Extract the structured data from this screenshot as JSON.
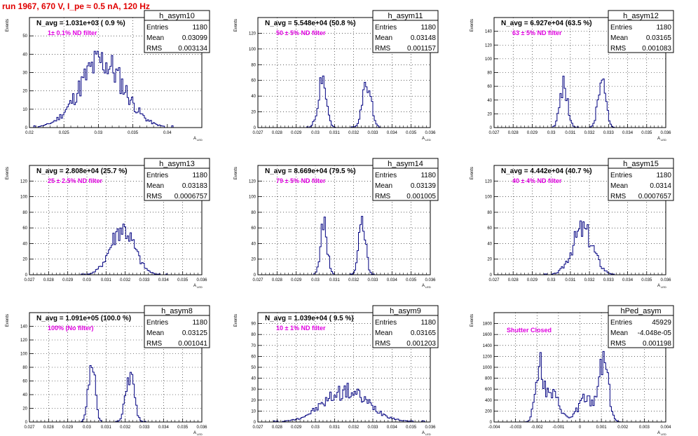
{
  "run_title": "run 1967,   670 V, I_pe ≈ 0.5 nA, 120 Hz",
  "colors": {
    "title": "#e00000",
    "line": "#000080",
    "frame": "#000000",
    "annotation": "#e000e0",
    "grid": "#000000"
  },
  "stats_labels": {
    "entries": "Entries",
    "mean": "Mean",
    "rms": "RMS"
  },
  "axis_labels": {
    "y": "Events",
    "x": "A",
    "x_sub": "LED"
  },
  "chart_data": [
    {
      "type": "histogram",
      "name": "h_asym10",
      "entries": "1180",
      "mean": "0.03099",
      "rms": "0.003134",
      "navg": "N_avg = 1.031e+03 ( 0.9 %)",
      "note": "1± 0.1% ND filter",
      "xlim": [
        0.02,
        0.045
      ],
      "ylim": [
        0,
        60
      ],
      "xticks": [
        "0.02",
        "0.025",
        "0.03",
        "0.035",
        "0.04"
      ],
      "xtick_values": [
        0.02,
        0.025,
        0.03,
        0.035,
        0.04
      ],
      "yticks": [
        0,
        10,
        20,
        30,
        40,
        50
      ],
      "peaks": [
        {
          "center": 0.0305,
          "sigma": 0.0032,
          "height": 36,
          "skew": 0
        }
      ],
      "seed": 11,
      "grid": true
    },
    {
      "type": "histogram",
      "name": "h_asym11",
      "entries": "1180",
      "mean": "0.03148",
      "rms": "0.001157",
      "navg": "N_avg = 5.548e+04 (50.8 %)",
      "note": "50 ± 5% ND filter",
      "xlim": [
        0.027,
        0.036
      ],
      "ylim": [
        0,
        140
      ],
      "xticks": [
        "0.027",
        "0.028",
        "0.029",
        "0.03",
        "0.031",
        "0.032",
        "0.033",
        "0.034",
        "0.035",
        "0.036"
      ],
      "xtick_values": [
        0.027,
        0.028,
        0.029,
        0.03,
        0.031,
        0.032,
        0.033,
        0.034,
        0.035,
        0.036
      ],
      "yticks": [
        0,
        20,
        40,
        60,
        80,
        100,
        120
      ],
      "peaks": [
        {
          "center": 0.03035,
          "sigma": 0.00022,
          "height": 56
        },
        {
          "center": 0.0327,
          "sigma": 0.00022,
          "height": 58
        }
      ],
      "seed": 23,
      "grid": true
    },
    {
      "type": "histogram",
      "name": "h_asym12",
      "entries": "1180",
      "mean": "0.03165",
      "rms": "0.001083",
      "navg": "N_avg = 6.927e+04 (63.5 %)",
      "note": "63 ± 5% ND filter",
      "xlim": [
        0.027,
        0.036
      ],
      "ylim": [
        0,
        160
      ],
      "xticks": [
        "0.027",
        "0.028",
        "0.029",
        "0.03",
        "0.031",
        "0.032",
        "0.033",
        "0.034",
        "0.035",
        "0.036"
      ],
      "xtick_values": [
        0.027,
        0.028,
        0.029,
        0.03,
        0.031,
        0.032,
        0.033,
        0.034,
        0.035,
        0.036
      ],
      "yticks": [
        0,
        20,
        40,
        60,
        80,
        100,
        120,
        140
      ],
      "peaks": [
        {
          "center": 0.03065,
          "sigma": 0.0002,
          "height": 62
        },
        {
          "center": 0.03265,
          "sigma": 0.0002,
          "height": 68
        }
      ],
      "seed": 37,
      "grid": true
    },
    {
      "type": "histogram",
      "name": "h_asym13",
      "entries": "1180",
      "mean": "0.03183",
      "rms": "0.0006757",
      "navg": "N_avg = 2.808e+04 (25.7 %)",
      "note": "25 ± 2.5% ND filter",
      "xlim": [
        0.027,
        0.036
      ],
      "ylim": [
        0,
        140
      ],
      "xticks": [
        "0.027",
        "0.028",
        "0.029",
        "0.03",
        "0.031",
        "0.032",
        "0.033",
        "0.034",
        "0.035",
        "0.036"
      ],
      "xtick_values": [
        0.027,
        0.028,
        0.029,
        0.03,
        0.031,
        0.032,
        0.033,
        0.034,
        0.035,
        0.036
      ],
      "yticks": [
        0,
        20,
        40,
        60,
        80,
        100,
        120
      ],
      "peaks": [
        {
          "center": 0.03185,
          "sigma": 0.00062,
          "height": 58
        }
      ],
      "seed": 41,
      "grid": true
    },
    {
      "type": "histogram",
      "name": "h_asym14",
      "entries": "1180",
      "mean": "0.03139",
      "rms": "0.001005",
      "navg": "N_avg = 8.669e+04 (79.5 %)",
      "note": "79 ± 5% ND filter",
      "xlim": [
        0.027,
        0.036
      ],
      "ylim": [
        0,
        140
      ],
      "xticks": [
        "0.027",
        "0.028",
        "0.029",
        "0.03",
        "0.031",
        "0.032",
        "0.033",
        "0.034",
        "0.035",
        "0.036"
      ],
      "xtick_values": [
        0.027,
        0.028,
        0.029,
        0.03,
        0.031,
        0.032,
        0.033,
        0.034,
        0.035,
        0.036
      ],
      "yticks": [
        0,
        20,
        40,
        60,
        80,
        100,
        120
      ],
      "peaks": [
        {
          "center": 0.03045,
          "sigma": 0.00018,
          "height": 62
        },
        {
          "center": 0.03245,
          "sigma": 0.00018,
          "height": 64
        }
      ],
      "seed": 53,
      "grid": true
    },
    {
      "type": "histogram",
      "name": "h_asym15",
      "entries": "1180",
      "mean": "0.0314",
      "rms": "0.0007657",
      "navg": "N_avg = 4.442e+04 (40.7 %)",
      "note": "40 ± 4% ND filter",
      "xlim": [
        0.027,
        0.036
      ],
      "ylim": [
        0,
        140
      ],
      "xticks": [
        "0.027",
        "0.028",
        "0.029",
        "0.03",
        "0.031",
        "0.032",
        "0.033",
        "0.034",
        "0.035",
        "0.036"
      ],
      "xtick_values": [
        0.027,
        0.028,
        0.029,
        0.03,
        0.031,
        0.032,
        0.033,
        0.034,
        0.035,
        0.036
      ],
      "yticks": [
        0,
        20,
        40,
        60,
        80,
        100,
        120
      ],
      "peaks": [
        {
          "center": 0.0317,
          "sigma": 0.00055,
          "height": 58,
          "skew": -0.35
        }
      ],
      "seed": 67,
      "grid": true
    },
    {
      "type": "histogram",
      "name": "h_asym8",
      "entries": "1180",
      "mean": "0.03125",
      "rms": "0.001041",
      "navg": "N_avg = 1.091e+05 (100.0 %)",
      "note": "100% (No filter)",
      "xlim": [
        0.027,
        0.036
      ],
      "ylim": [
        0,
        160
      ],
      "xticks": [
        "0.027",
        "0.028",
        "0.029",
        "0.03",
        "0.031",
        "0.032",
        "0.033",
        "0.034",
        "0.035",
        "0.036"
      ],
      "xtick_values": [
        0.027,
        0.028,
        0.029,
        0.03,
        0.031,
        0.032,
        0.033,
        0.034,
        0.035,
        0.036
      ],
      "yticks": [
        0,
        20,
        40,
        60,
        80,
        100,
        120,
        140
      ],
      "peaks": [
        {
          "center": 0.03025,
          "sigma": 0.00017,
          "height": 88
        },
        {
          "center": 0.03225,
          "sigma": 0.00022,
          "height": 68
        }
      ],
      "seed": 79,
      "grid": true
    },
    {
      "type": "histogram",
      "name": "h_asym9",
      "entries": "1180",
      "mean": "0.03165",
      "rms": "0.001203",
      "navg": "N_avg = 1.039e+04 ( 9.5 %)",
      "note": "10 ± 1% ND filter",
      "xlim": [
        0.027,
        0.036
      ],
      "ylim": [
        0,
        100
      ],
      "xticks": [
        "0.027",
        "0.028",
        "0.029",
        "0.03",
        "0.031",
        "0.032",
        "0.033",
        "0.034",
        "0.035",
        "0.036"
      ],
      "xtick_values": [
        0.027,
        0.028,
        0.029,
        0.03,
        0.031,
        0.032,
        0.033,
        0.034,
        0.035,
        0.036
      ],
      "yticks": [
        0,
        10,
        20,
        30,
        40,
        50,
        60,
        70,
        80,
        90
      ],
      "peaks": [
        {
          "center": 0.0316,
          "sigma": 0.0012,
          "height": 28
        }
      ],
      "seed": 97,
      "grid": true
    },
    {
      "type": "histogram",
      "name": "hPed_asym",
      "entries": "45929",
      "mean": "-4.048e-05",
      "rms": "0.001198",
      "navg": "",
      "note": "Shutter Closed",
      "xlim": [
        -0.004,
        0.004
      ],
      "ylim": [
        0,
        2000
      ],
      "xticks": [
        "-0.004",
        "-0.003",
        "-0.002",
        "-0.001",
        "0",
        "0.001",
        "0.002",
        "0.003",
        "0.004"
      ],
      "xtick_values": [
        -0.004,
        -0.003,
        -0.002,
        -0.001,
        0,
        0.001,
        0.002,
        0.003,
        0.004
      ],
      "yticks": [
        0,
        200,
        400,
        600,
        800,
        1000,
        1200,
        1400,
        1600,
        1800
      ],
      "peaks": [
        {
          "center": -0.0019,
          "sigma": 0.00018,
          "height": 1000
        },
        {
          "center": 0.0011,
          "sigma": 0.00022,
          "height": 1200
        },
        {
          "center": -0.0013,
          "sigma": 0.00035,
          "height": 480
        },
        {
          "center": 0.00025,
          "sigma": 0.00035,
          "height": 420
        }
      ],
      "seed": 113,
      "grid": true
    }
  ]
}
